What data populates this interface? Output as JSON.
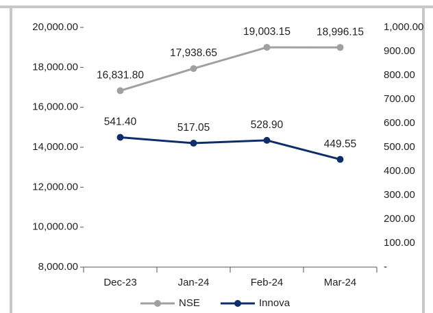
{
  "chart_data": {
    "type": "line",
    "categories": [
      "Dec-23",
      "Jan-24",
      "Feb-24",
      "Mar-24"
    ],
    "series": [
      {
        "name": "NSE",
        "color": "#a0a0a0",
        "values": [
          16831.8,
          17938.65,
          19003.15,
          18996.15
        ],
        "value_labels": [
          "16,831.80",
          "17,938.65",
          "19,003.15",
          "18,996.15"
        ]
      },
      {
        "name": "Innova",
        "color": "#0d2d6b",
        "axis": "y2",
        "values": [
          541.4,
          517.05,
          528.9,
          449.55
        ],
        "value_labels": [
          "541.40",
          "517.05",
          "528.90",
          "449.55"
        ]
      }
    ],
    "ylim": [
      8000,
      20000
    ],
    "yticks": [
      {
        "value": 8000,
        "label": "8,000.00"
      },
      {
        "value": 10000,
        "label": "10,000.00"
      },
      {
        "value": 12000,
        "label": "12,000.00"
      },
      {
        "value": 14000,
        "label": "14,000.00"
      },
      {
        "value": 16000,
        "label": "16,000.00"
      },
      {
        "value": 18000,
        "label": "18,000.00"
      },
      {
        "value": 20000,
        "label": "20,000.00"
      }
    ],
    "y2lim": [
      0,
      1000
    ],
    "y2ticks": [
      {
        "value": 0,
        "label": "-"
      },
      {
        "value": 100,
        "label": "100.00"
      },
      {
        "value": 200,
        "label": "200.00"
      },
      {
        "value": 300,
        "label": "300.00"
      },
      {
        "value": 400,
        "label": "400.00"
      },
      {
        "value": 500,
        "label": "500.00"
      },
      {
        "value": 600,
        "label": "600.00"
      },
      {
        "value": 700,
        "label": "700.00"
      },
      {
        "value": 800,
        "label": "800.00"
      },
      {
        "value": 900,
        "label": "900.00"
      },
      {
        "value": 1000,
        "label": "1,000.00"
      }
    ],
    "legend": "bottom"
  }
}
